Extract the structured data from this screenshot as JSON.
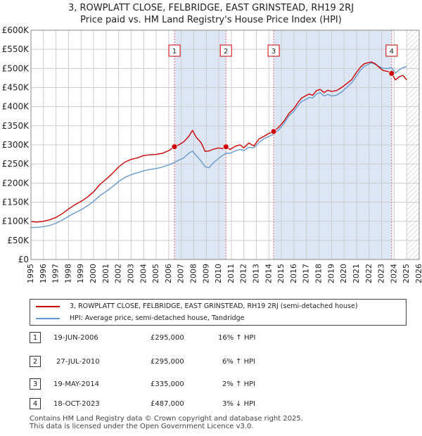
{
  "header": {
    "title_line1": "3, ROWPLATT CLOSE, FELBRIDGE, EAST GRINSTEAD, RH19 2RJ",
    "title_line2": "Price paid vs. HM Land Registry's House Price Index (HPI)"
  },
  "colors": {
    "property": "#cc0000",
    "hpi": "#6699cc",
    "band": "#dde6f5",
    "marker_line": "#e06666",
    "grid": "#cccccc"
  },
  "chart_data": {
    "type": "line",
    "ylim": [
      0,
      600000
    ],
    "xlim": [
      1995,
      2026
    ],
    "y_ticks": [
      0,
      50000,
      100000,
      150000,
      200000,
      250000,
      300000,
      350000,
      400000,
      450000,
      500000,
      550000,
      600000
    ],
    "y_tick_labels": [
      "£0",
      "£50K",
      "£100K",
      "£150K",
      "£200K",
      "£250K",
      "£300K",
      "£350K",
      "£400K",
      "£450K",
      "£500K",
      "£550K",
      "£600K"
    ],
    "x_ticks": [
      1995,
      1996,
      1997,
      1998,
      1999,
      2000,
      2001,
      2002,
      2003,
      2004,
      2005,
      2006,
      2007,
      2008,
      2009,
      2010,
      2011,
      2012,
      2013,
      2014,
      2015,
      2016,
      2017,
      2018,
      2019,
      2020,
      2021,
      2022,
      2023,
      2024,
      2025,
      2026
    ],
    "x_tick_labels": [
      "1995",
      "1996",
      "1997",
      "1998",
      "1999",
      "2000",
      "2001",
      "2002",
      "2003",
      "2004",
      "2005",
      "2006",
      "2007",
      "2008",
      "2009",
      "2010",
      "2011",
      "2012",
      "2013",
      "2014",
      "2015",
      "2016",
      "2017",
      "2018",
      "2019",
      "2020",
      "2021",
      "2022",
      "2023",
      "2024",
      "2025",
      "2026"
    ],
    "series": [
      {
        "name": "3, ROWPLATT CLOSE, FELBRIDGE, EAST GRINSTEAD, RH19 2RJ (semi-detached house)",
        "x": [
          1995.0,
          1995.5,
          1996.0,
          1996.5,
          1997.0,
          1997.5,
          1998.0,
          1998.5,
          1999.0,
          1999.5,
          2000.0,
          2000.5,
          2001.0,
          2001.5,
          2002.0,
          2002.5,
          2003.0,
          2003.5,
          2004.0,
          2004.5,
          2005.0,
          2005.5,
          2006.0,
          2006.46,
          2006.8,
          2007.2,
          2007.6,
          2007.9,
          2008.2,
          2008.6,
          2008.9,
          2009.2,
          2009.6,
          2010.0,
          2010.3,
          2010.57,
          2010.9,
          2011.3,
          2011.7,
          2012.0,
          2012.4,
          2012.8,
          2013.2,
          2013.6,
          2014.0,
          2014.38,
          2014.8,
          2015.2,
          2015.6,
          2016.0,
          2016.3,
          2016.6,
          2016.9,
          2017.2,
          2017.5,
          2017.8,
          2018.1,
          2018.4,
          2018.7,
          2019.0,
          2019.4,
          2019.8,
          2020.2,
          2020.6,
          2021.0,
          2021.3,
          2021.6,
          2021.9,
          2022.2,
          2022.5,
          2022.8,
          2023.1,
          2023.5,
          2023.8,
          2024.1,
          2024.4,
          2024.7,
          2025.0
        ],
        "values": [
          99000,
          98000,
          100000,
          104000,
          110000,
          120000,
          132000,
          143000,
          152000,
          163000,
          177000,
          196000,
          210000,
          225000,
          242000,
          255000,
          262000,
          266000,
          272000,
          274000,
          275000,
          278000,
          285000,
          295000,
          300000,
          308000,
          322000,
          338000,
          320000,
          305000,
          283000,
          284000,
          289000,
          292000,
          290000,
          295000,
          288000,
          296000,
          300000,
          292000,
          305000,
          297000,
          315000,
          322000,
          330000,
          335000,
          347000,
          362000,
          382000,
          395000,
          410000,
          422000,
          428000,
          433000,
          430000,
          442000,
          445000,
          437000,
          443000,
          440000,
          442000,
          450000,
          460000,
          470000,
          490000,
          503000,
          512000,
          515000,
          517000,
          512000,
          503000,
          495000,
          492000,
          487000,
          470000,
          478000,
          482000,
          470000
        ]
      },
      {
        "name": "HPI: Average price, semi-detached house, Tandridge",
        "x": [
          1995.0,
          1995.5,
          1996.0,
          1996.5,
          1997.0,
          1997.5,
          1998.0,
          1998.5,
          1999.0,
          1999.5,
          2000.0,
          2000.5,
          2001.0,
          2001.5,
          2002.0,
          2002.5,
          2003.0,
          2003.5,
          2004.0,
          2004.5,
          2005.0,
          2005.5,
          2006.0,
          2006.46,
          2006.8,
          2007.2,
          2007.6,
          2007.9,
          2008.2,
          2008.6,
          2008.9,
          2009.2,
          2009.6,
          2010.0,
          2010.3,
          2010.57,
          2010.9,
          2011.3,
          2011.7,
          2012.0,
          2012.4,
          2012.8,
          2013.2,
          2013.6,
          2014.0,
          2014.38,
          2014.8,
          2015.2,
          2015.6,
          2016.0,
          2016.3,
          2016.6,
          2016.9,
          2017.2,
          2017.5,
          2017.8,
          2018.1,
          2018.4,
          2018.7,
          2019.0,
          2019.4,
          2019.8,
          2020.2,
          2020.6,
          2021.0,
          2021.3,
          2021.6,
          2021.9,
          2022.2,
          2022.5,
          2022.8,
          2023.1,
          2023.5,
          2023.8,
          2024.1,
          2024.4,
          2024.7,
          2025.0
        ],
        "values": [
          84000,
          84000,
          86000,
          89000,
          95000,
          103000,
          113000,
          122000,
          130000,
          140000,
          152000,
          167000,
          178000,
          190000,
          204000,
          215000,
          222000,
          227000,
          232000,
          236000,
          238000,
          242000,
          248000,
          254000,
          260000,
          266000,
          278000,
          284000,
          272000,
          257000,
          243000,
          240000,
          254000,
          265000,
          272000,
          278000,
          278000,
          284000,
          288000,
          285000,
          294000,
          292000,
          306000,
          316000,
          322000,
          328000,
          340000,
          356000,
          376000,
          388000,
          402000,
          413000,
          418000,
          424000,
          423000,
          433000,
          437000,
          428000,
          432000,
          428000,
          430000,
          438000,
          450000,
          462000,
          480000,
          495000,
          505000,
          510000,
          515000,
          510000,
          505000,
          500000,
          500000,
          502000,
          488000,
          496000,
          502000,
          505000
        ]
      }
    ],
    "sales": [
      {
        "label": "1",
        "x": 2006.46,
        "date": "19-JUN-2006",
        "price": 295000,
        "price_label": "£295,000",
        "hpi_delta": "16% ↑ HPI"
      },
      {
        "label": "2",
        "x": 2010.57,
        "date": "27-JUL-2010",
        "price": 295000,
        "price_label": "£295,000",
        "hpi_delta": "6% ↑ HPI"
      },
      {
        "label": "3",
        "x": 2014.38,
        "date": "19-MAY-2014",
        "price": 335000,
        "price_label": "£335,000",
        "hpi_delta": "2% ↑ HPI"
      },
      {
        "label": "4",
        "x": 2023.8,
        "date": "18-OCT-2023",
        "price": 487000,
        "price_label": "£487,000",
        "hpi_delta": "3% ↓ HPI"
      }
    ],
    "bands": [
      [
        2006.46,
        2010.57
      ],
      [
        2014.38,
        2023.8
      ]
    ],
    "future_from": 2025.0
  },
  "legend": {
    "property_label": "3, ROWPLATT CLOSE, FELBRIDGE, EAST GRINSTEAD, RH19 2RJ (semi-detached house)",
    "hpi_label": "HPI: Average price, semi-detached house, Tandridge"
  },
  "footer": {
    "line1": "Contains HM Land Registry data © Crown copyright and database right 2025.",
    "line2": "This data is licensed under the Open Government Licence v3.0."
  }
}
